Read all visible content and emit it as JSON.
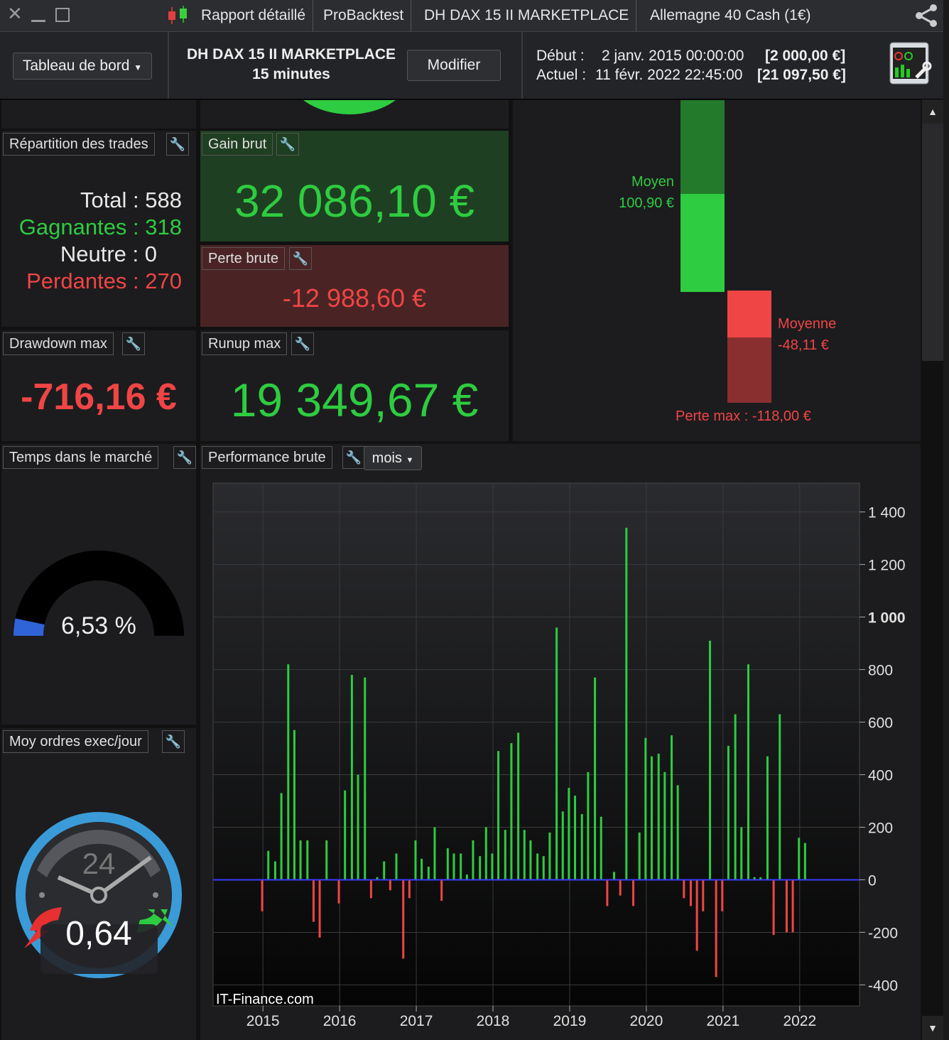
{
  "titlebar": {
    "tabs": [
      "Rapport détaillé",
      "ProBacktest",
      "DH DAX 15 II MARKETPLACE",
      "Allemagne 40 Cash (1€)"
    ]
  },
  "header": {
    "dashboard_label": "Tableau de bord",
    "system_name": "DH DAX 15 II MARKETPLACE",
    "timeframe": "15 minutes",
    "modify_label": "Modifier",
    "start_label": "Début :",
    "start_date": "2 janv. 2015 00:00:00",
    "start_value": "[2 000,00 €]",
    "current_label": "Actuel :",
    "current_date": "11 févr. 2022 22:45:00",
    "current_value": "[21 097,50 €]"
  },
  "trades": {
    "title": "Répartition des trades",
    "total": "Total : 588",
    "winners": "Gagnantes : 318",
    "neutral": "Neutre : 0",
    "losers": "Perdantes : 270"
  },
  "gross_gain": {
    "title": "Gain brut",
    "value": "32 086,10 €"
  },
  "gross_loss": {
    "title": "Perte brute",
    "value": "-12 988,60 €"
  },
  "drawdown": {
    "title": "Drawdown max",
    "value": "-716,16 €"
  },
  "runup": {
    "title": "Runup max",
    "value": "19 349,67 €"
  },
  "avg_panel": {
    "avg_gain_label": "Moyen",
    "avg_gain_value": "100,90 €",
    "avg_loss_label": "Moyenne",
    "avg_loss_value": "-48,11 €",
    "max_loss": "Perte max : -118,00 €"
  },
  "market_time": {
    "title": "Temps dans le marché",
    "value": "6,53 %",
    "fraction": 0.0653
  },
  "orders": {
    "title": "Moy ordres exec/jour",
    "value": "0,64",
    "clock_number": "24"
  },
  "performance": {
    "title": "Performance brute",
    "period": "mois",
    "watermark": "IT-Finance.com"
  },
  "colors": {
    "gain": "#2ecc40",
    "loss": "#f04545",
    "zero_line": "#3a3aff",
    "gain_panel": "#1f3f22",
    "loss_panel": "#4a2424"
  },
  "chart_data": {
    "type": "bar",
    "title": "Performance brute",
    "period": "mois",
    "x_ticks": [
      "2015",
      "2016",
      "2017",
      "2018",
      "2019",
      "2020",
      "2021",
      "2022"
    ],
    "y_ticks": [
      "-400",
      "-200",
      "0",
      "200",
      "400",
      "600",
      "800",
      "1 000",
      "1 200",
      "1 400"
    ],
    "ylim": [
      -480,
      1510
    ],
    "xlim": [
      2014.35,
      2022.78
    ],
    "grid": true,
    "x": [
      2014.99,
      2015.07,
      2015.16,
      2015.24,
      2015.33,
      2015.41,
      2015.49,
      2015.58,
      2015.66,
      2015.74,
      2015.83,
      2015.91,
      2015.99,
      2016.07,
      2016.16,
      2016.24,
      2016.33,
      2016.41,
      2016.49,
      2016.58,
      2016.66,
      2016.74,
      2016.83,
      2016.91,
      2016.99,
      2017.07,
      2017.16,
      2017.24,
      2017.33,
      2017.41,
      2017.49,
      2017.58,
      2017.66,
      2017.74,
      2017.83,
      2017.91,
      2017.99,
      2018.07,
      2018.16,
      2018.24,
      2018.33,
      2018.41,
      2018.49,
      2018.58,
      2018.66,
      2018.74,
      2018.83,
      2018.91,
      2018.99,
      2019.07,
      2019.16,
      2019.24,
      2019.33,
      2019.41,
      2019.49,
      2019.58,
      2019.66,
      2019.74,
      2019.83,
      2019.91,
      2019.99,
      2020.07,
      2020.16,
      2020.24,
      2020.33,
      2020.41,
      2020.49,
      2020.58,
      2020.66,
      2020.74,
      2020.83,
      2020.91,
      2020.99,
      2021.07,
      2021.16,
      2021.24,
      2021.33,
      2021.41,
      2021.49,
      2021.58,
      2021.66,
      2021.74,
      2021.83,
      2021.91,
      2021.99,
      2022.07
    ],
    "values": [
      -120,
      110,
      70,
      330,
      820,
      570,
      150,
      150,
      -160,
      -220,
      150,
      0,
      -90,
      340,
      780,
      400,
      770,
      -70,
      10,
      70,
      -40,
      100,
      -300,
      -70,
      150,
      80,
      50,
      200,
      -80,
      120,
      100,
      100,
      20,
      150,
      90,
      200,
      100,
      490,
      190,
      520,
      560,
      190,
      150,
      100,
      90,
      180,
      960,
      260,
      350,
      320,
      250,
      410,
      770,
      240,
      -100,
      30,
      -60,
      1340,
      -100,
      180,
      540,
      470,
      480,
      410,
      550,
      360,
      -70,
      -100,
      -270,
      -120,
      910,
      -370,
      -120,
      510,
      630,
      200,
      820,
      10,
      10,
      470,
      -210,
      630,
      -200,
      -200,
      160,
      140
    ]
  }
}
